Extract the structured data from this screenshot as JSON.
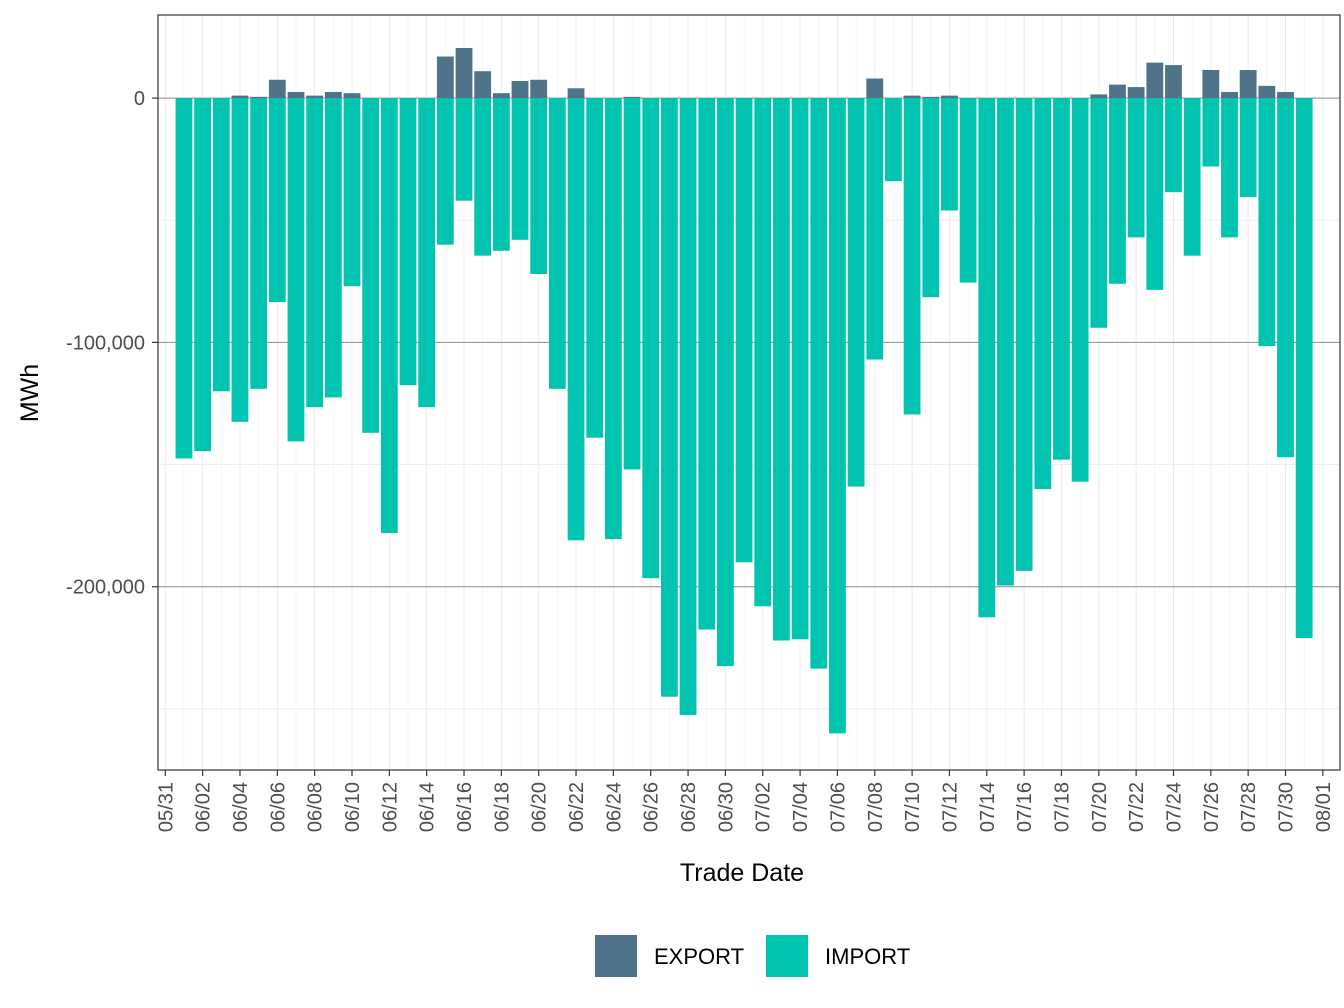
{
  "chart_data": {
    "type": "bar",
    "stacked": true,
    "xlabel": "Trade Date",
    "ylabel": "MWh",
    "ylim": [
      -275000,
      34000
    ],
    "y_ticks": [
      0,
      -100000,
      -200000
    ],
    "y_tick_labels": [
      "0",
      "-100,000",
      "-200,000"
    ],
    "x_tick_labels": [
      "05/31",
      "06/02",
      "06/04",
      "06/06",
      "06/08",
      "06/10",
      "06/12",
      "06/14",
      "06/16",
      "06/18",
      "06/20",
      "06/22",
      "06/24",
      "06/26",
      "06/28",
      "06/30",
      "07/02",
      "07/04",
      "07/06",
      "07/08",
      "07/10",
      "07/12",
      "07/14",
      "07/16",
      "07/18",
      "07/20",
      "07/22",
      "07/24",
      "07/26",
      "07/28",
      "07/30",
      "08/01"
    ],
    "grid": true,
    "legend_position": "bottom",
    "categories": [
      "06/01",
      "06/02",
      "06/03",
      "06/04",
      "06/05",
      "06/06",
      "06/07",
      "06/08",
      "06/09",
      "06/10",
      "06/11",
      "06/12",
      "06/13",
      "06/14",
      "06/15",
      "06/16",
      "06/17",
      "06/18",
      "06/19",
      "06/20",
      "06/21",
      "06/22",
      "06/23",
      "06/24",
      "06/25",
      "06/26",
      "06/27",
      "06/28",
      "06/29",
      "06/30",
      "07/01",
      "07/02",
      "07/03",
      "07/04",
      "07/05",
      "07/06",
      "07/07",
      "07/08",
      "07/09",
      "07/10",
      "07/11",
      "07/12",
      "07/13",
      "07/14",
      "07/15",
      "07/16",
      "07/17",
      "07/18",
      "07/19",
      "07/20",
      "07/21",
      "07/22",
      "07/23",
      "07/24",
      "07/25",
      "07/26",
      "07/27",
      "07/28",
      "07/29",
      "07/30",
      "07/31"
    ],
    "series": [
      {
        "name": "EXPORT",
        "color": "#4f7389",
        "values": [
          0,
          0,
          0,
          1000,
          500,
          7500,
          2500,
          1000,
          2500,
          2000,
          0,
          0,
          0,
          0,
          17000,
          20500,
          11000,
          2000,
          7000,
          7500,
          0,
          4000,
          0,
          0,
          500,
          0,
          0,
          0,
          0,
          0,
          0,
          0,
          0,
          0,
          0,
          0,
          0,
          8000,
          0,
          1000,
          500,
          1000,
          0,
          0,
          0,
          0,
          0,
          0,
          0,
          1500,
          5500,
          4500,
          14500,
          13500,
          0,
          11500,
          2500,
          11500,
          5000,
          2500,
          0
        ]
      },
      {
        "name": "IMPORT",
        "color": "#00c4b0",
        "values": [
          -147500,
          -144500,
          -120000,
          -132500,
          -119000,
          -83500,
          -140500,
          -126500,
          -122500,
          -77000,
          -137000,
          -178000,
          -117500,
          -126500,
          -60000,
          -42000,
          -64500,
          -62500,
          -58000,
          -72000,
          -119000,
          -181000,
          -139000,
          -180500,
          -152000,
          -196500,
          -245000,
          -252500,
          -217500,
          -232500,
          -190000,
          -208000,
          -222000,
          -221500,
          -233500,
          -260000,
          -159000,
          -107000,
          -34000,
          -129500,
          -81500,
          -46000,
          -75500,
          -212500,
          -199500,
          -193500,
          -160000,
          -148000,
          -157000,
          -94000,
          -76000,
          -57000,
          -78500,
          -38500,
          -64500,
          -28000,
          -57000,
          -40500,
          -101500,
          -147000,
          -221000
        ]
      }
    ]
  }
}
